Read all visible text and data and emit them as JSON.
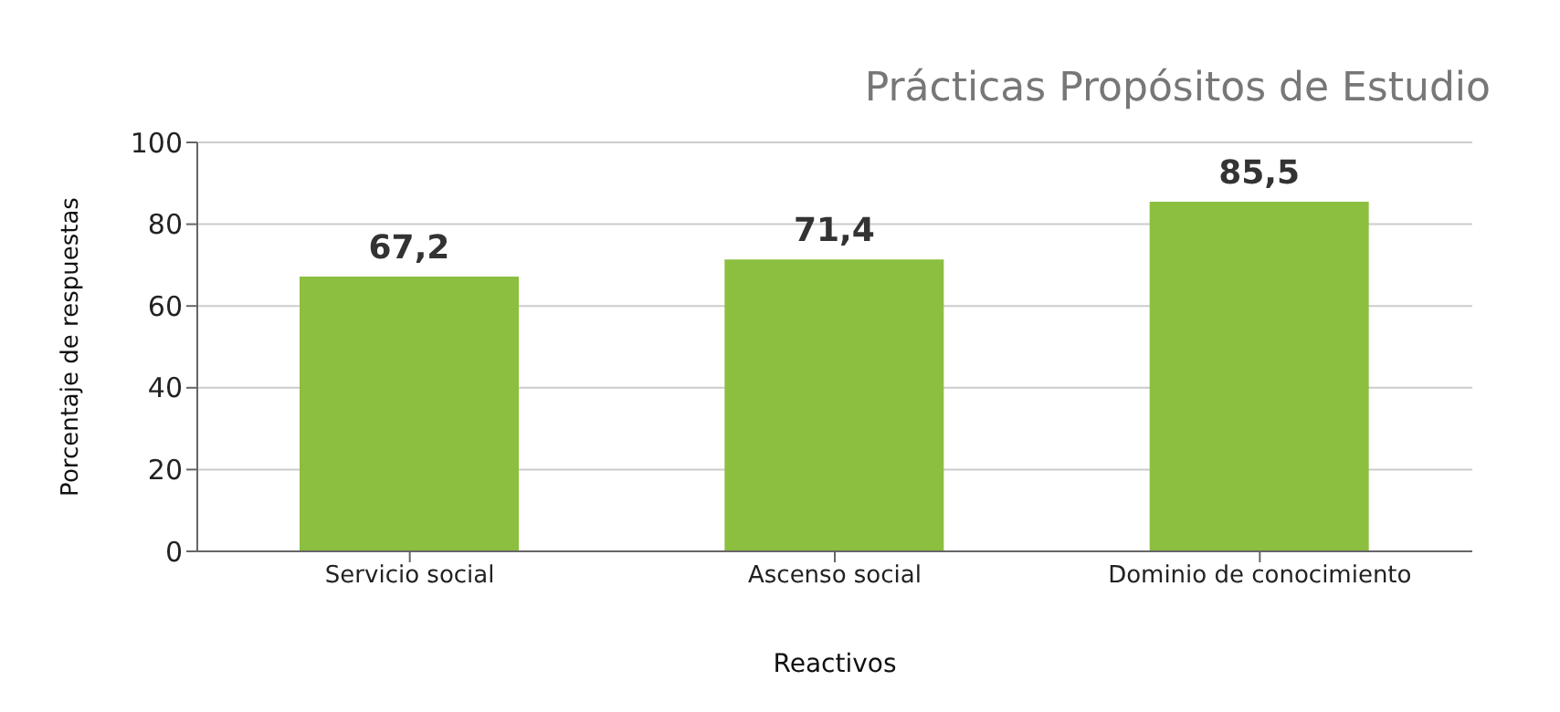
{
  "chart_data": {
    "type": "bar",
    "title": "Prácticas Propósitos de Estudio",
    "xlabel": "Reactivos",
    "ylabel": "Porcentaje de respuestas",
    "categories": [
      "Servicio social",
      "Ascenso social",
      "Dominio de conocimiento"
    ],
    "values": [
      67.2,
      71.4,
      85.5
    ],
    "value_labels": [
      "67,2",
      "71,4",
      "85,5"
    ],
    "color": "#8cbf3f",
    "ylim": [
      0,
      100
    ],
    "yticks": [
      0,
      20,
      40,
      60,
      80,
      100
    ],
    "grid": "y"
  }
}
